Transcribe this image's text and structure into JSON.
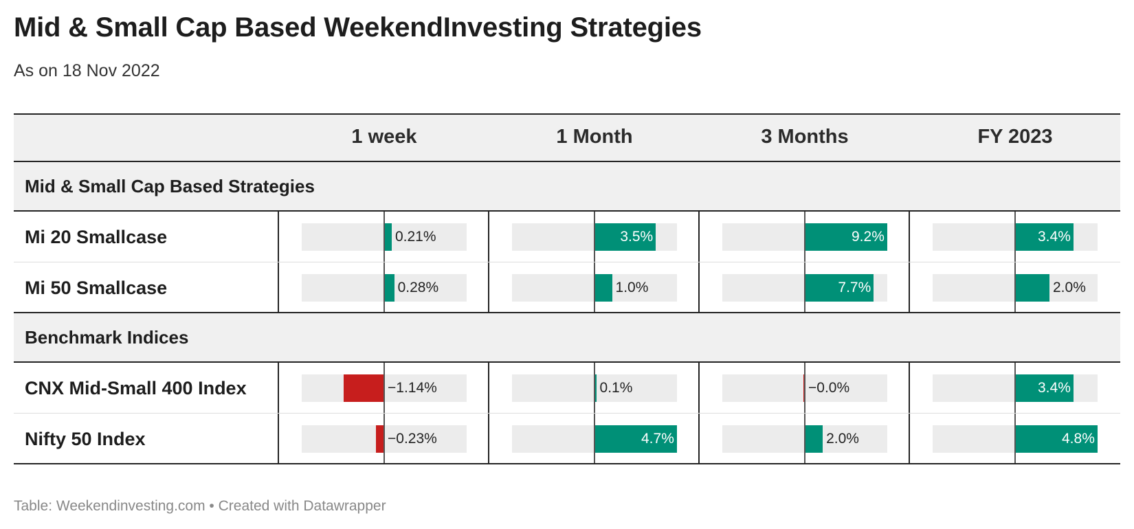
{
  "title": "Mid & Small Cap Based WeekendInvesting Strategies",
  "subtitle": "As on 18 Nov 2022",
  "footer": "Table: Weekendinvesting.com • Created with Datawrapper",
  "colors": {
    "positive": "#009077",
    "negative": "#c71e1d",
    "track": "#ececec",
    "header_bg": "#f0f0f0"
  },
  "chart_data": {
    "type": "table",
    "columns": [
      "1 week",
      "1 Month",
      "3 Months",
      "FY 2023"
    ],
    "column_ranges": [
      [
        -2.3,
        2.3
      ],
      [
        -4.7,
        4.7
      ],
      [
        -9.2,
        9.2
      ],
      [
        -4.8,
        4.8
      ]
    ],
    "groups": [
      {
        "label": "Mid & Small Cap Based Strategies",
        "rows": [
          {
            "name": "Mi 20 Smallcase",
            "values": [
              0.21,
              3.5,
              9.2,
              3.4
            ],
            "labels": [
              "0.21%",
              "3.5%",
              "9.2%",
              "3.4%"
            ]
          },
          {
            "name": "Mi 50 Smallcase",
            "values": [
              0.28,
              1.0,
              7.7,
              2.0
            ],
            "labels": [
              "0.28%",
              "1.0%",
              "7.7%",
              "2.0%"
            ]
          }
        ]
      },
      {
        "label": "Benchmark Indices",
        "rows": [
          {
            "name": "CNX Mid-Small 400 Index",
            "values": [
              -1.14,
              0.1,
              -0.01,
              3.4
            ],
            "labels": [
              "−1.14%",
              "0.1%",
              "−0.0%",
              "3.4%"
            ]
          },
          {
            "name": "Nifty 50 Index",
            "values": [
              -0.23,
              4.7,
              2.0,
              4.8
            ],
            "labels": [
              "−0.23%",
              "4.7%",
              "2.0%",
              "4.8%"
            ]
          }
        ]
      }
    ]
  }
}
